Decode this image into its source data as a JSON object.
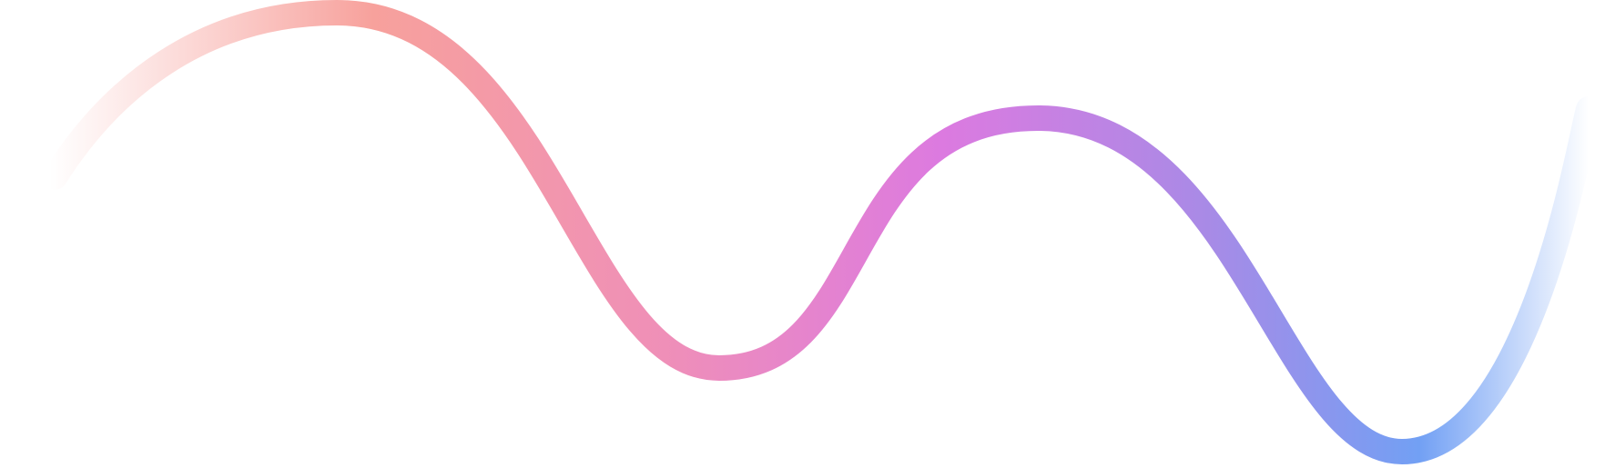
{
  "graphic": {
    "name": "gradient-wave",
    "colors": {
      "start": "#f7a19c",
      "pink": "#ef8fb8",
      "magenta": "#dc7ae0",
      "violet": "#a98ae6",
      "blue": "#72a0f4",
      "background": "#ffffff"
    }
  }
}
